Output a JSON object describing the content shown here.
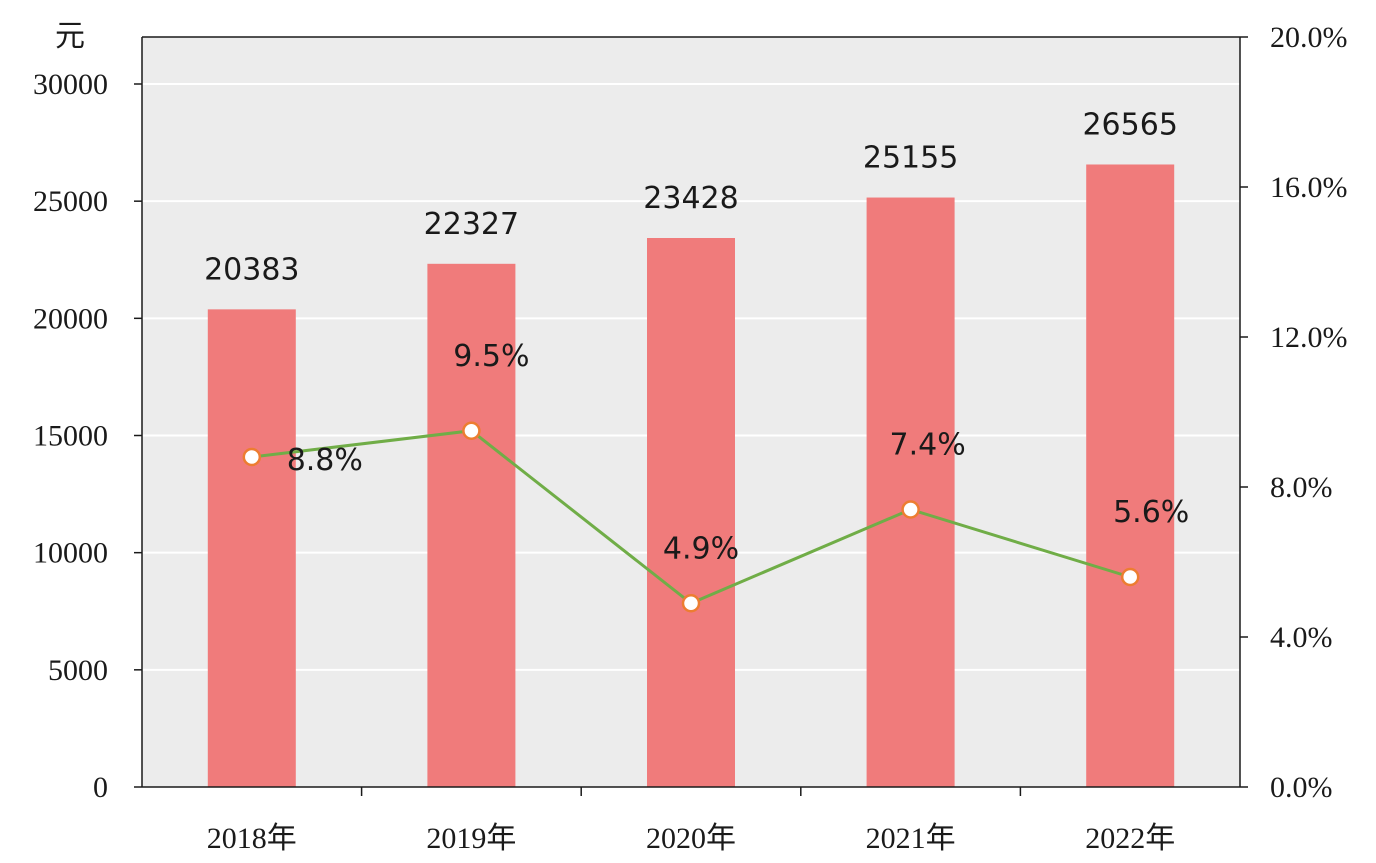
{
  "chart_data": {
    "type": "bar",
    "categories": [
      "2018年",
      "2019年",
      "2020年",
      "2021年",
      "2022年"
    ],
    "y_left_unit": "元",
    "y_left_ticks": [
      "0",
      "5000",
      "10000",
      "15000",
      "20000",
      "25000",
      "30000"
    ],
    "y_left_range": [
      0,
      30000
    ],
    "y_right_ticks": [
      "0.0%",
      "4.0%",
      "8.0%",
      "12.0%",
      "16.0%",
      "20.0%"
    ],
    "y_right_range": [
      0,
      20
    ],
    "series": [
      {
        "type": "bar",
        "axis": "left",
        "values": [
          20383,
          22327,
          23428,
          25155,
          26565
        ],
        "labels": [
          "20383",
          "22327",
          "23428",
          "25155",
          "26565"
        ]
      },
      {
        "type": "line",
        "axis": "right",
        "values": [
          8.8,
          9.5,
          4.9,
          7.4,
          5.6
        ],
        "labels": [
          "8.8%",
          "9.5%",
          "4.9%",
          "7.4%",
          "5.6%"
        ]
      }
    ],
    "grid": true,
    "legend": "none",
    "colors": {
      "plot_background": "#ececec",
      "bar": "#f07b7b",
      "line": "#70ad47",
      "marker_fill": "#ffffff",
      "marker_stroke": "#ed7d31",
      "gridline": "#ffffff",
      "axis": "#1a1a1a"
    }
  }
}
